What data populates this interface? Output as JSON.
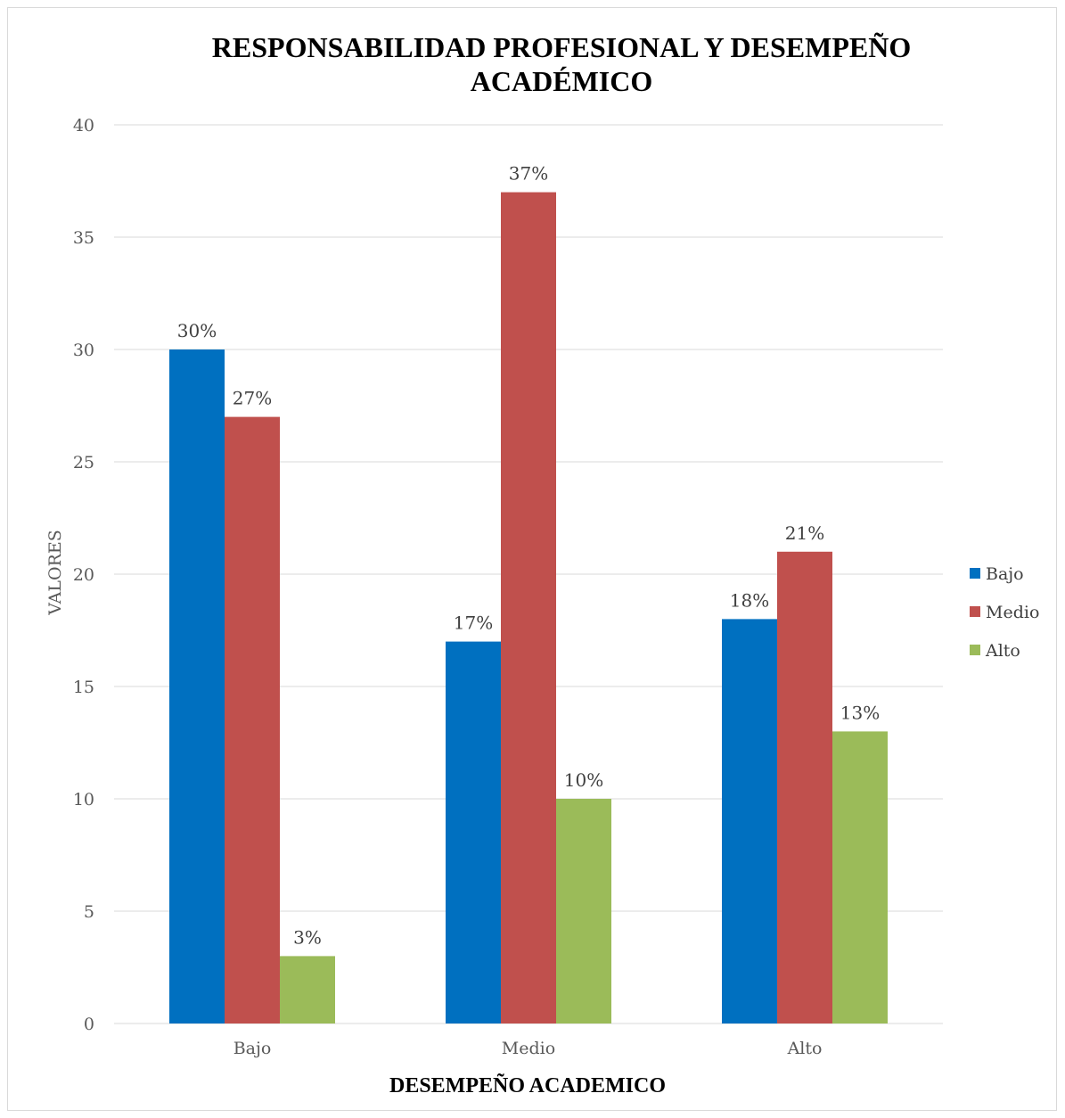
{
  "chart_data": {
    "type": "bar",
    "title": "RESPONSABILIDAD PROFESIONAL Y DESEMPEÑO ACADÉMICO",
    "xlabel": "DESEMPEÑO ACADEMICO",
    "ylabel": "VALORES",
    "categories": [
      "Bajo",
      "Medio",
      "Alto"
    ],
    "series": [
      {
        "name": "Bajo",
        "color": "#0070c0",
        "values": [
          30,
          17,
          18
        ],
        "labels": [
          "30%",
          "17%",
          "18%"
        ]
      },
      {
        "name": "Medio",
        "color": "#c0504d",
        "values": [
          27,
          37,
          21
        ],
        "labels": [
          "27%",
          "37%",
          "21%"
        ]
      },
      {
        "name": "Alto",
        "color": "#9bbb59",
        "values": [
          3,
          10,
          13
        ],
        "labels": [
          "3%",
          "10%",
          "13%"
        ]
      }
    ],
    "ylim": [
      0,
      40
    ],
    "yticks": [
      0,
      5,
      10,
      15,
      20,
      25,
      30,
      35,
      40
    ],
    "grid": true,
    "legend_position": "right"
  }
}
